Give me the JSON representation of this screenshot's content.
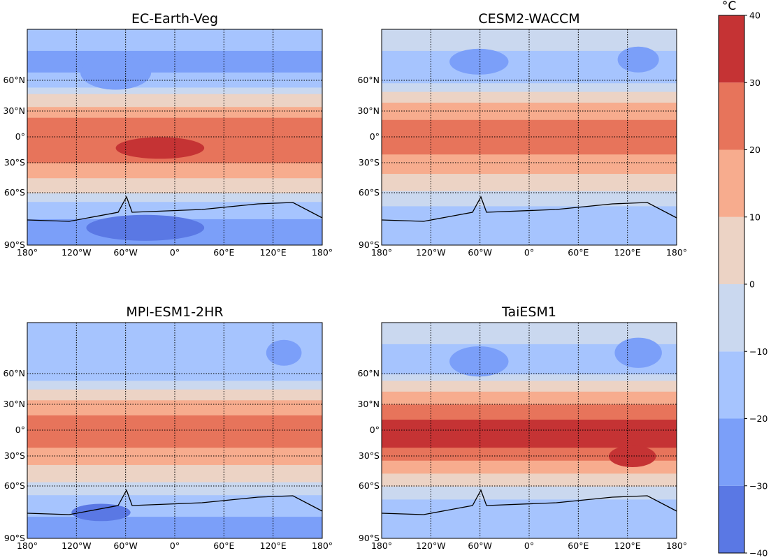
{
  "panels": [
    {
      "title": "EC-Earth-Veg"
    },
    {
      "title": "CESM2-WACCM"
    },
    {
      "title": "MPI-ESM1-2HR"
    },
    {
      "title": "TaiESM1"
    }
  ],
  "lat_labels": [
    "60°N",
    "30°N",
    "0°",
    "30°S",
    "60°S",
    "90°S"
  ],
  "lon_labels": [
    "180°",
    "120°W",
    "60°W",
    "0°",
    "60°E",
    "120°E",
    "180°"
  ],
  "colorbar": {
    "unit": "°C",
    "ticks": [
      {
        "value": -40,
        "label": "−40"
      },
      {
        "value": -30,
        "label": "−30"
      },
      {
        "value": -20,
        "label": "−20"
      },
      {
        "value": -10,
        "label": "−10"
      },
      0,
      10,
      20,
      30,
      40
    ],
    "colors": [
      "#5a78e4",
      "#7b9ff9",
      "#a6c4fe",
      "#cad8ef",
      "#ecd3c5",
      "#f7ac8e",
      "#e7745b",
      "#c53334"
    ]
  }
}
